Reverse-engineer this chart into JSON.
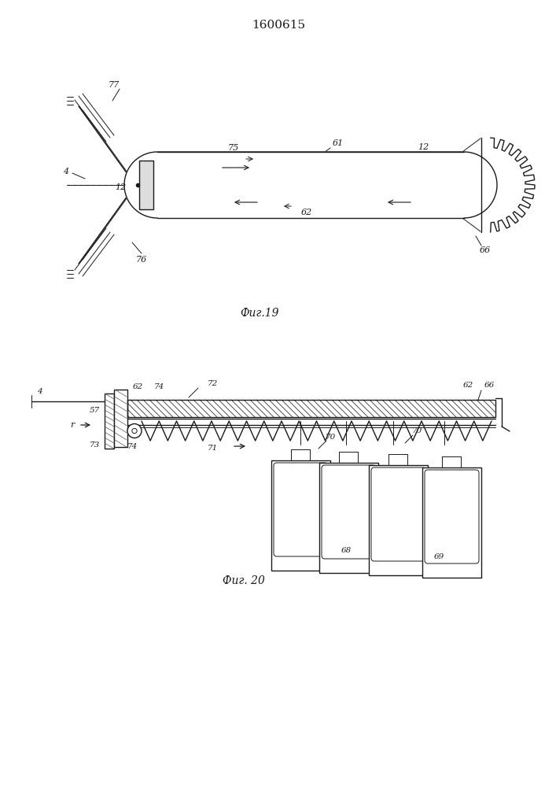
{
  "patent_number": "1600615",
  "fig19_label": "Фиг.19",
  "fig20_label": "Фиг. 20",
  "bg_color": "#ffffff",
  "line_color": "#1a1a1a"
}
